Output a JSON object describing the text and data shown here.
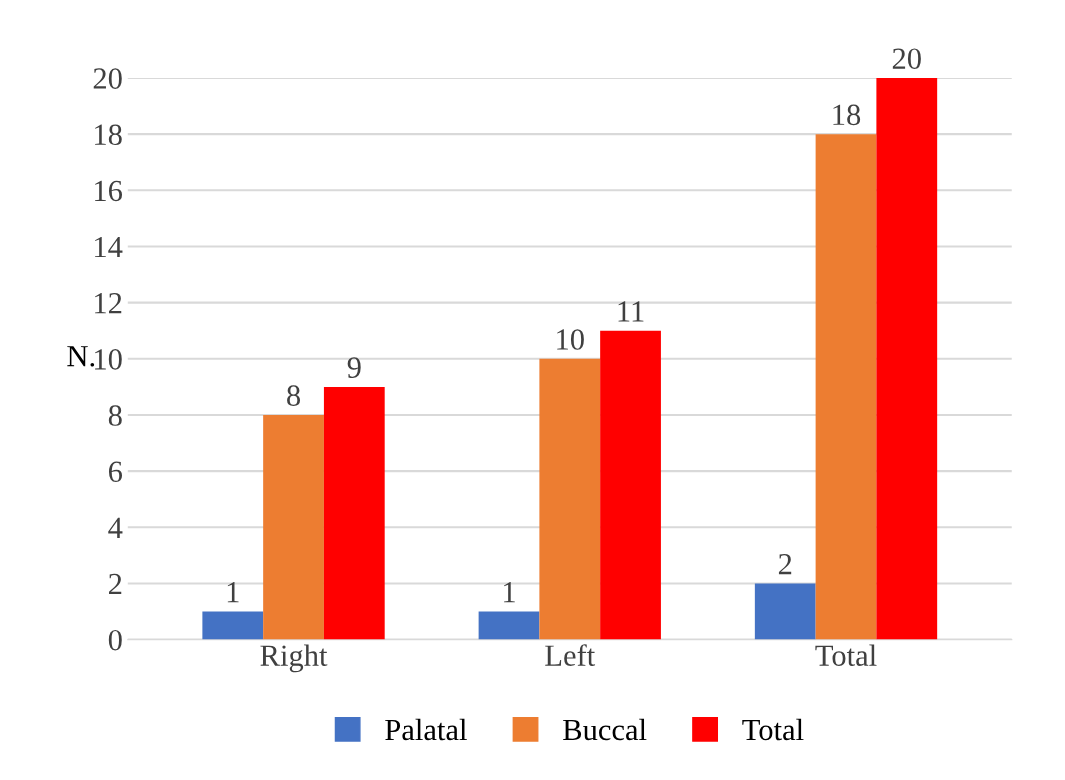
{
  "chart_data": {
    "type": "bar",
    "ylabel": "N.",
    "categories": [
      "Right",
      "Left",
      "Total"
    ],
    "series": [
      {
        "name": "Palatal",
        "color": "#4472c4",
        "values": [
          1,
          1,
          2
        ]
      },
      {
        "name": "Buccal",
        "color": "#ed7d31",
        "values": [
          8,
          10,
          18
        ]
      },
      {
        "name": "Total",
        "color": "#ff0000",
        "values": [
          9,
          11,
          20
        ]
      }
    ],
    "ylim": [
      0,
      20
    ],
    "yticks": [
      0,
      2,
      4,
      6,
      8,
      10,
      12,
      14,
      16,
      18,
      20
    ],
    "grid": "y",
    "legend": "bottom",
    "data_labels": true
  }
}
